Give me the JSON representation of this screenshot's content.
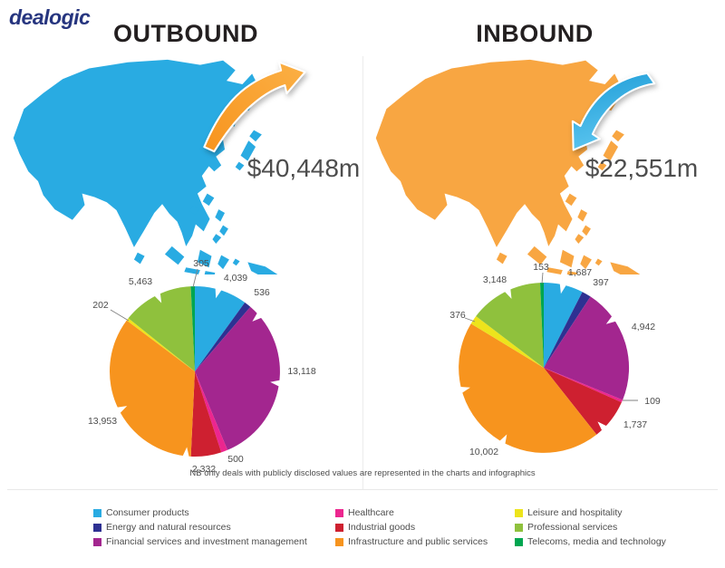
{
  "logo": {
    "text": "dealogic",
    "color": "#26357F"
  },
  "panels": {
    "outbound": {
      "heading": "OUTBOUND",
      "value": "$40,448m",
      "map_color": "#29ABE2",
      "arrow_direction": "up-right",
      "arrow_color_main": "#F7941E",
      "arrow_color_light": "#FBB045"
    },
    "inbound": {
      "heading": "INBOUND",
      "value": "$22,551m",
      "map_color": "#F8A642",
      "arrow_direction": "down-left",
      "arrow_color_main": "#1E9CD7",
      "arrow_color_light": "#5BC5EF"
    }
  },
  "note": "NB only deals with publicly disclosed values are represented in the charts and infographics",
  "legend": {
    "items": [
      {
        "label": "Consumer products",
        "color": "#29ABE2"
      },
      {
        "label": "Energy and natural resources",
        "color": "#2E3192"
      },
      {
        "label": "Financial services and investment management",
        "color": "#A3268F"
      },
      {
        "label": "Healthcare",
        "color": "#EC268F"
      },
      {
        "label": "Industrial goods",
        "color": "#CE2030"
      },
      {
        "label": "Infrastructure and public services",
        "color": "#F7941E"
      },
      {
        "label": "Leisure and hospitality",
        "color": "#EDE41C"
      },
      {
        "label": "Professional services",
        "color": "#8FC13D"
      },
      {
        "label": "Telecoms, media and technology",
        "color": "#00A651"
      }
    ]
  },
  "chart_data": [
    {
      "type": "pie",
      "title": "OUTBOUND",
      "total": 40448,
      "total_label": "$40,448m",
      "categories": [
        "Consumer products",
        "Energy and natural resources",
        "Financial services and investment management",
        "Healthcare",
        "Industrial goods",
        "Infrastructure and public services",
        "Leisure and hospitality",
        "Professional services",
        "Telecoms, media and technology"
      ],
      "values": [
        4039,
        536,
        13118,
        500,
        2332,
        13953,
        202,
        5463,
        305
      ],
      "labels": [
        "4,039",
        "536",
        "13,118",
        "500",
        "2,332",
        "13,953",
        "202",
        "5,463",
        "305"
      ],
      "colors": [
        "#29ABE2",
        "#2E3192",
        "#A3268F",
        "#EC268F",
        "#CE2030",
        "#F7941E",
        "#EDE41C",
        "#8FC13D",
        "#00A651"
      ],
      "start_angle": "12 o'clock",
      "direction": "clockwise",
      "legend_position": "bottom"
    },
    {
      "type": "pie",
      "title": "INBOUND",
      "total": 22551,
      "total_label": "$22,551m",
      "categories": [
        "Consumer products",
        "Energy and natural resources",
        "Financial services and investment management",
        "Healthcare",
        "Industrial goods",
        "Infrastructure and public services",
        "Leisure and hospitality",
        "Professional services",
        "Telecoms, media and technology"
      ],
      "values": [
        1687,
        397,
        4942,
        109,
        1737,
        10002,
        376,
        3148,
        153
      ],
      "labels": [
        "1,687",
        "397",
        "4,942",
        "109",
        "1,737",
        "10,002",
        "376",
        "3,148",
        "153"
      ],
      "colors": [
        "#29ABE2",
        "#2E3192",
        "#A3268F",
        "#EC268F",
        "#CE2030",
        "#F7941E",
        "#EDE41C",
        "#8FC13D",
        "#00A651"
      ],
      "start_angle": "12 o'clock",
      "direction": "clockwise",
      "legend_position": "bottom"
    }
  ]
}
